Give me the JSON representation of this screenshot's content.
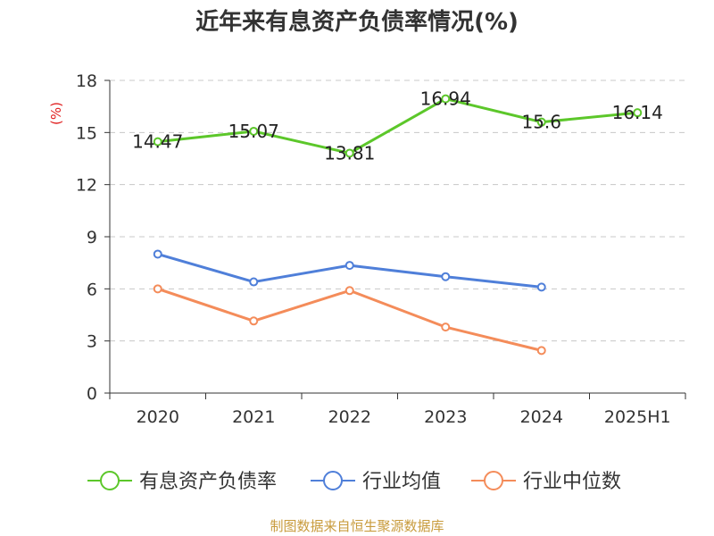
{
  "title": "近年来有息资产负债率情况(%)",
  "source": "制图数据来自恒生聚源数据库",
  "chart_data": {
    "type": "line",
    "title": "近年来有息资产负债率情况(%)",
    "ylabel": "(%)",
    "ylim": [
      0,
      18
    ],
    "yticks": [
      0,
      3,
      6,
      9,
      12,
      15,
      18
    ],
    "grid": true,
    "legend_position": "bottom",
    "categories": [
      "2020",
      "2021",
      "2022",
      "2023",
      "2024",
      "2025H1"
    ],
    "series": [
      {
        "name": "有息资产负债率",
        "color": "#5cc72a",
        "values": [
          14.47,
          15.07,
          13.81,
          16.94,
          15.6,
          16.14
        ],
        "labels": [
          "14.47",
          "15.07",
          "13.81",
          "16.94",
          "15.6",
          "16.14"
        ]
      },
      {
        "name": "行业均值",
        "color": "#4f7fd9",
        "values": [
          8.0,
          6.4,
          7.35,
          6.7,
          6.1,
          null
        ]
      },
      {
        "name": "行业中位数",
        "color": "#f48c5a",
        "values": [
          6.0,
          4.15,
          5.9,
          3.8,
          2.45,
          null
        ]
      }
    ]
  }
}
